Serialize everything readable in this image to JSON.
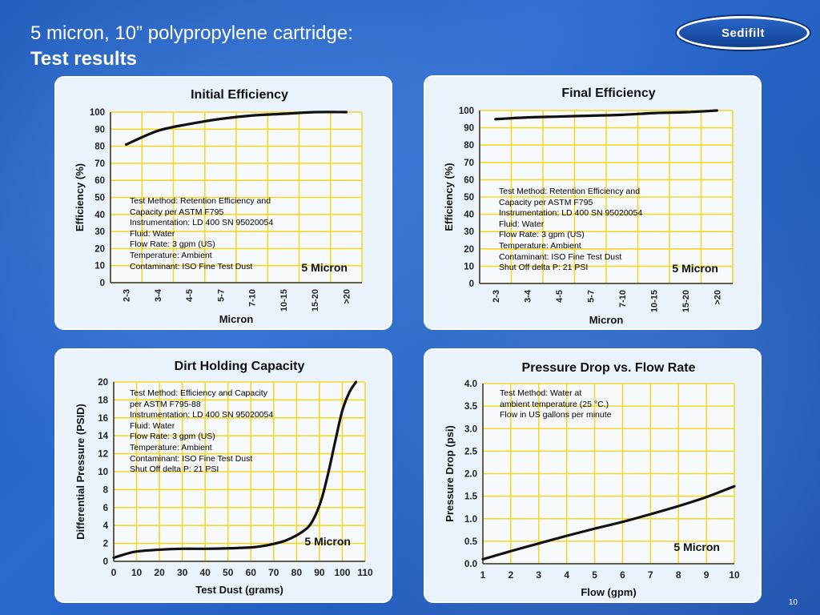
{
  "header": {
    "line1": "5 micron, 10” polypropylene cartridge:",
    "line2": "Test results",
    "logo_text": "Sedifilt"
  },
  "page_number": "10",
  "colors": {
    "grid": "#f3d82a",
    "curve": "#111111",
    "panel_bg": "#eaf3fb"
  },
  "notes": {
    "initial": "Test Method: Retention Efficiency and\nCapacity per ASTM F795\nInstrumentation: LD 400 SN 95020054\nFluid: Water\nFlow Rate: 3 gpm (US)\nTemperature: Ambient\nContaminant: ISO Fine Test Dust",
    "final": "Test Method: Retention Efficiency and\nCapacity per ASTM F795\nInstrumentation: LD 400 SN 95020054\nFluid: Water\nFlow Rate: 3 gpm (US)\nTemperature: Ambient\nContaminant: ISO Fine Test Dust\nShut Off delta P: 21 PSI",
    "dirt": "Test Method: Efficiency and Capacity\nper ASTM F795-88\nInstrumentation: LD 400 SN 95020054\nFluid: Water\nFlow Rate: 3 gpm (US)\nTemperature: Ambient\nContaminant: ISO Fine Test Dust\nShut Off delta P: 21 PSI",
    "pressure": "Test Method: Water at\nambient temperature (25 °C.)\nFlow in US gallons per minute"
  },
  "chart_data": [
    {
      "id": "initial",
      "type": "line",
      "title": "Initial Efficiency",
      "xlabel": "Micron",
      "ylabel": "Efficiency (%)",
      "categories": [
        "2-3",
        "3-4",
        "4-5",
        "5-7",
        "7-10",
        "10-15",
        "15-20",
        ">20"
      ],
      "ylim": [
        0,
        100
      ],
      "yticks": [
        0,
        10,
        20,
        30,
        40,
        50,
        60,
        70,
        80,
        90,
        100
      ],
      "series": [
        {
          "name": "5 Micron",
          "values": [
            81,
            89,
            93,
            96,
            98,
            99,
            100,
            100
          ]
        }
      ],
      "grid": true
    },
    {
      "id": "final",
      "type": "line",
      "title": "Final Efficiency",
      "xlabel": "Micron",
      "ylabel": "Efficiency (%)",
      "categories": [
        "2-3",
        "3-4",
        "4-5",
        "5-7",
        "7-10",
        "10-15",
        "15-20",
        ">20"
      ],
      "ylim": [
        0,
        100
      ],
      "yticks": [
        0,
        10,
        20,
        30,
        40,
        50,
        60,
        70,
        80,
        90,
        100
      ],
      "series": [
        {
          "name": "5 Micron",
          "values": [
            95,
            96,
            96.5,
            97,
            97.5,
            98.5,
            99,
            100
          ]
        }
      ],
      "grid": true
    },
    {
      "id": "dirt",
      "type": "line",
      "title": "Dirt Holding Capacity",
      "xlabel": "Test Dust (grams)",
      "ylabel": "Differential Pressure (PSID)",
      "xlim": [
        0,
        110
      ],
      "xticks": [
        0,
        10,
        20,
        30,
        40,
        50,
        60,
        70,
        80,
        90,
        100,
        110
      ],
      "ylim": [
        0,
        20
      ],
      "yticks": [
        0,
        2,
        4,
        6,
        8,
        10,
        12,
        14,
        16,
        18,
        20
      ],
      "series": [
        {
          "name": "5 Micron",
          "x": [
            0,
            5,
            10,
            20,
            30,
            40,
            50,
            60,
            65,
            70,
            75,
            80,
            85,
            88,
            91,
            94,
            97,
            100,
            103,
            106
          ],
          "y": [
            0.4,
            0.8,
            1.1,
            1.3,
            1.4,
            1.4,
            1.45,
            1.55,
            1.7,
            1.95,
            2.3,
            2.9,
            3.8,
            5.0,
            7.0,
            10.0,
            13.5,
            16.8,
            18.8,
            20.0
          ]
        }
      ],
      "grid": true
    },
    {
      "id": "pressure",
      "type": "line",
      "title": "Pressure Drop vs. Flow Rate",
      "xlabel": "Flow (gpm)",
      "ylabel": "Pressure Drop (psi)",
      "xlim": [
        1,
        10
      ],
      "xticks": [
        1,
        2,
        3,
        4,
        5,
        6,
        7,
        8,
        9,
        10
      ],
      "ylim": [
        0,
        4
      ],
      "yticks": [
        "0.0",
        "0.5",
        "1.0",
        "1.5",
        "2.0",
        "2.5",
        "3.0",
        "3.5",
        "4.0"
      ],
      "series": [
        {
          "name": "5 Micron",
          "x": [
            1,
            2,
            3,
            4,
            5,
            6,
            7,
            8,
            9,
            10
          ],
          "y": [
            0.1,
            0.28,
            0.45,
            0.62,
            0.78,
            0.93,
            1.1,
            1.28,
            1.48,
            1.72
          ]
        }
      ],
      "grid": true
    }
  ]
}
